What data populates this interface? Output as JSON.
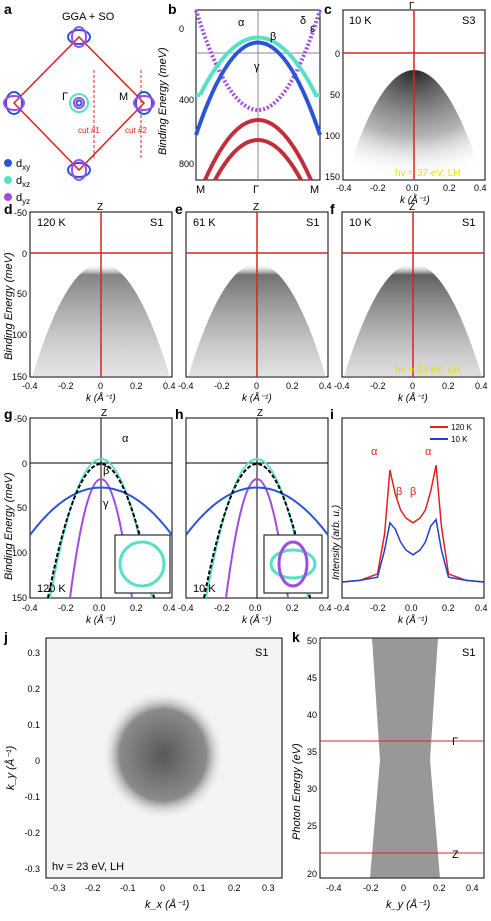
{
  "panels": {
    "a": {
      "label": "a",
      "title": "GGA + SO",
      "gamma": "Γ",
      "m": "M",
      "cut1": "cut #1",
      "cut2": "cut #2",
      "legend": [
        {
          "name": "d",
          "sub": "xy",
          "color": "#2b55d6"
        },
        {
          "name": "d",
          "sub": "xz",
          "color": "#58e0c4"
        },
        {
          "name": "d",
          "sub": "yz",
          "color": "#a24be0"
        }
      ]
    },
    "b": {
      "label": "b",
      "ylabel": "Binding Energy (meV)",
      "yticks": [
        "0",
        "400",
        "800"
      ],
      "xticks": [
        "M",
        "Γ",
        "M"
      ],
      "bands": {
        "alpha": "α",
        "beta": "β",
        "gamma": "γ",
        "delta": "δ",
        "epsilon": "ε"
      }
    },
    "c": {
      "label": "c",
      "temp": "10 K",
      "sample": "S3",
      "top": "Γ",
      "note": "hv = 37 eV, LH",
      "yticks": [
        "0",
        "50",
        "100",
        "150"
      ],
      "xticks": [
        "-0.4",
        "-0.2",
        "0.0",
        "0.2",
        "0.4"
      ],
      "xlabel": "k (Å⁻¹)"
    },
    "d": {
      "label": "d",
      "temp": "120 K",
      "sample": "S1",
      "top": "Z",
      "ylabel": "Binding Energy (meV)",
      "yticks": [
        "-50",
        "0",
        "50",
        "100",
        "150"
      ],
      "xticks": [
        "-0.4",
        "-0.2",
        "0",
        "0.2",
        "0.4"
      ],
      "xlabel": "k (Å⁻¹)"
    },
    "e": {
      "label": "e",
      "temp": "61 K",
      "sample": "S1",
      "top": "Z",
      "xticks": [
        "-0.4",
        "-0.2",
        "0",
        "0.2",
        "0.4"
      ],
      "xlabel": "k (Å⁻¹)"
    },
    "f": {
      "label": "f",
      "temp": "10 K",
      "sample": "S1",
      "top": "Z",
      "note": "hv = 23 eV, LH",
      "xticks": [
        "-0.4",
        "-0.2",
        "0",
        "0.2",
        "0.4"
      ],
      "xlabel": "k (Å⁻¹)"
    },
    "g": {
      "label": "g",
      "temp": "120 K",
      "top": "Z",
      "ylabel": "Binding Energy (meV)",
      "yticks": [
        "-50",
        "0",
        "50",
        "100",
        "150"
      ],
      "xticks": [
        "-0.4",
        "-0.2",
        "0.0",
        "0.2",
        "0.4"
      ],
      "xlabel": "k (Å⁻¹)",
      "bands": {
        "alpha": "α",
        "beta": "β",
        "gamma": "γ"
      }
    },
    "h": {
      "label": "h",
      "temp": "10 K",
      "top": "Z",
      "xticks": [
        "-0.4",
        "-0.2",
        "0.0",
        "0.2",
        "0.4"
      ],
      "xlabel": "k (Å⁻¹)"
    },
    "i": {
      "label": "i",
      "ylabel": "Intensity (arb. u.)",
      "xticks": [
        "-0.4",
        "-0.2",
        "0.0",
        "0.2",
        "0.4"
      ],
      "xlabel": "k (Å⁻¹)",
      "legend": [
        {
          "name": "120 K",
          "color": "#e02020"
        },
        {
          "name": "10 K",
          "color": "#2040d0"
        }
      ],
      "peaks": {
        "alpha": "α",
        "beta": "β"
      }
    },
    "j": {
      "label": "j",
      "sample": "S1",
      "note": "hv = 23 eV, LH",
      "ylabel": "k_y (Å⁻¹)",
      "xlabel": "k_x (Å⁻¹)",
      "yticks": [
        "0.3",
        "0.2",
        "0.1",
        "0",
        "-0.1",
        "-0.2",
        "-0.3"
      ],
      "xticks": [
        "-0.3",
        "-0.2",
        "-0.1",
        "0",
        "0.1",
        "0.2",
        "0.3"
      ]
    },
    "k": {
      "label": "k",
      "sample": "S1",
      "ylabel": "Photon Energy (eV)",
      "xlabel": "k_y (Å⁻¹)",
      "yticks": [
        "50",
        "45",
        "40",
        "35",
        "30",
        "25",
        "20"
      ],
      "xticks": [
        "-0.4",
        "-0.2",
        "0",
        "0.2",
        "0.4"
      ],
      "gamma": "Γ",
      "z": "Z"
    }
  },
  "colors": {
    "red": "#e02020",
    "blue": "#2b55d6",
    "cyan": "#58e0c4",
    "purple": "#a24be0",
    "yellow": "#e8e000"
  },
  "chart_data": [
    {
      "type": "line",
      "panel": "i",
      "title": "",
      "xlabel": "k (Å⁻¹)",
      "ylabel": "Intensity (arb. u.)",
      "xlim": [
        -0.4,
        0.4
      ],
      "series": [
        {
          "name": "120 K",
          "x": [
            -0.4,
            -0.3,
            -0.2,
            -0.16,
            -0.13,
            -0.1,
            -0.07,
            -0.04,
            0,
            0.04,
            0.07,
            0.1,
            0.13,
            0.16,
            0.2,
            0.3,
            0.4
          ],
          "values": [
            0.05,
            0.06,
            0.1,
            0.35,
            0.75,
            0.6,
            0.5,
            0.45,
            0.42,
            0.45,
            0.5,
            0.62,
            0.78,
            0.4,
            0.1,
            0.06,
            0.05
          ]
        },
        {
          "name": "10 K",
          "x": [
            -0.4,
            -0.3,
            -0.2,
            -0.16,
            -0.13,
            -0.1,
            -0.07,
            -0.04,
            0,
            0.04,
            0.07,
            0.1,
            0.13,
            0.16,
            0.2,
            0.3,
            0.4
          ],
          "values": [
            0.05,
            0.06,
            0.08,
            0.25,
            0.42,
            0.38,
            0.3,
            0.25,
            0.22,
            0.25,
            0.3,
            0.4,
            0.44,
            0.25,
            0.08,
            0.06,
            0.05
          ]
        }
      ]
    }
  ]
}
